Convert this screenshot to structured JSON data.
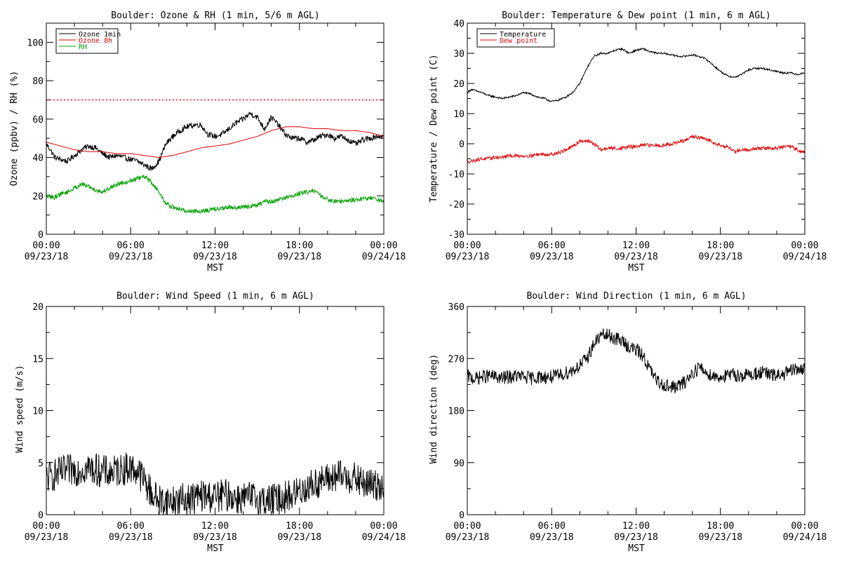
{
  "chart_data": [
    {
      "id": "ozone_rh",
      "type": "line",
      "title": "Boulder: Ozone & RH (1 min, 5/6 m AGL)",
      "xlabel": "MST",
      "ylabel": "Ozone (ppbv) / RH (%)",
      "xlim": [
        0,
        24
      ],
      "ylim": [
        0,
        110
      ],
      "yticks": [
        0,
        20,
        40,
        60,
        80,
        100
      ],
      "x_tick_labels": [
        [
          "00:00",
          "09/23/18"
        ],
        [
          "06:00",
          "09/23/18"
        ],
        [
          "12:00",
          "09/23/18"
        ],
        [
          "18:00",
          "09/23/18"
        ],
        [
          "00:00",
          "09/24/18"
        ]
      ],
      "legend": {
        "placement": "top-left",
        "entries": [
          {
            "name": "Ozone 1min",
            "color": "#000000"
          },
          {
            "name": "Ozone 8h",
            "color": "#e00000"
          },
          {
            "name": "RH",
            "color": "#00a000"
          }
        ]
      },
      "reference_line": {
        "y": 70,
        "color": "#e00000",
        "style": "dotted"
      },
      "series": [
        {
          "name": "Ozone 1min",
          "color": "#000000",
          "noise": 1.5,
          "x": [
            0,
            0.3,
            0.6,
            1,
            1.5,
            2,
            2.5,
            3,
            3.5,
            4,
            4.5,
            5,
            5.5,
            6,
            6.5,
            7,
            7.5,
            8,
            8.5,
            9,
            9.5,
            10,
            10.5,
            11,
            11.5,
            12,
            12.5,
            13,
            13.5,
            14,
            14.5,
            15,
            15.5,
            16,
            16.5,
            17,
            17.5,
            18,
            18.5,
            19,
            19.5,
            20,
            20.5,
            21,
            21.5,
            22,
            22.5,
            23,
            23.5,
            24
          ],
          "y": [
            47,
            44,
            40,
            39,
            38,
            41,
            44,
            46,
            45,
            42,
            40,
            41,
            40,
            39,
            38,
            36,
            34,
            38,
            47,
            51,
            54,
            56,
            57,
            57,
            52,
            51,
            52,
            55,
            58,
            60,
            63,
            61,
            55,
            61,
            57,
            52,
            50,
            50,
            48,
            49,
            51,
            52,
            50,
            51,
            49,
            47,
            49,
            50,
            51,
            51
          ]
        },
        {
          "name": "Ozone 8h",
          "color": "#e00000",
          "noise": 0,
          "x": [
            0,
            1,
            2,
            3,
            4,
            5,
            6,
            7,
            8,
            9,
            10,
            11,
            12,
            13,
            14,
            15,
            16,
            17,
            18,
            19,
            20,
            21,
            22,
            23,
            24
          ],
          "y": [
            48,
            46,
            44,
            43,
            43,
            42,
            42,
            41,
            40,
            41,
            43,
            45,
            46,
            47,
            49,
            51,
            54,
            56,
            56,
            55,
            55,
            54,
            54,
            53,
            51
          ]
        },
        {
          "name": "RH",
          "color": "#00a000",
          "noise": 1.2,
          "x": [
            0,
            0.5,
            1,
            1.5,
            2,
            2.5,
            3,
            3.5,
            4,
            4.5,
            5,
            5.5,
            6,
            6.5,
            7,
            7.5,
            8,
            8.5,
            9,
            9.5,
            10,
            11,
            12,
            13,
            14,
            15,
            15.5,
            16,
            16.5,
            17,
            17.5,
            18,
            18.5,
            19,
            19.5,
            20,
            21,
            22,
            23,
            24
          ],
          "y": [
            20,
            19,
            21,
            22,
            24,
            26,
            25,
            23,
            22,
            24,
            26,
            27,
            28,
            29,
            30,
            27,
            22,
            16,
            14,
            13,
            12,
            12,
            13,
            14,
            14,
            15,
            17,
            17,
            18,
            19,
            20,
            21,
            22,
            23,
            20,
            18,
            17,
            18,
            19,
            17
          ]
        }
      ]
    },
    {
      "id": "temp_dew",
      "type": "line",
      "title": "Boulder: Temperature & Dew point (1 min, 6 m AGL)",
      "xlabel": "MST",
      "ylabel": "Temperature / Dew point (C)",
      "xlim": [
        0,
        24
      ],
      "ylim": [
        -30,
        40
      ],
      "yticks": [
        -30,
        -20,
        -10,
        0,
        10,
        20,
        30,
        40
      ],
      "x_tick_labels": [
        [
          "00:00",
          "09/23/18"
        ],
        [
          "06:00",
          "09/23/18"
        ],
        [
          "12:00",
          "09/23/18"
        ],
        [
          "18:00",
          "09/23/18"
        ],
        [
          "00:00",
          "09/24/18"
        ]
      ],
      "legend": {
        "placement": "top-left",
        "entries": [
          {
            "name": "Temperature",
            "color": "#000000"
          },
          {
            "name": "Dew point",
            "color": "#e00000"
          }
        ]
      },
      "series": [
        {
          "name": "Temperature",
          "color": "#000000",
          "noise": 0.3,
          "x": [
            0,
            0.3,
            1,
            1.5,
            2,
            2.5,
            3,
            3.5,
            4,
            4.5,
            5,
            5.5,
            6,
            6.5,
            7,
            7.5,
            8,
            8.5,
            9,
            9.5,
            10,
            10.5,
            11,
            11.5,
            12,
            12.5,
            13,
            13.5,
            14,
            14.5,
            15,
            15.5,
            16,
            16.5,
            17,
            17.5,
            18,
            18.5,
            19,
            19.5,
            20,
            20.5,
            21,
            21.5,
            22,
            22.5,
            23,
            23.5,
            24
          ],
          "y": [
            17,
            18,
            17,
            16,
            15.5,
            15,
            15.5,
            16,
            17,
            16.5,
            15.5,
            15,
            14,
            14.5,
            15.5,
            17,
            20,
            25,
            29,
            30,
            30,
            31,
            31.5,
            30,
            31,
            31.5,
            30.5,
            30,
            30,
            29.5,
            29,
            29,
            29.5,
            29,
            28,
            26,
            24,
            22.5,
            22,
            23,
            24.5,
            25,
            25,
            24.5,
            24,
            23.5,
            23.5,
            23,
            23.5
          ]
        },
        {
          "name": "Dew point",
          "color": "#e00000",
          "noise": 0.6,
          "x": [
            0,
            0.5,
            1,
            1.5,
            2,
            2.5,
            3,
            3.5,
            4,
            4.5,
            5,
            5.5,
            6,
            6.5,
            7,
            7.5,
            8,
            8.5,
            9,
            9.5,
            10,
            10.5,
            11,
            11.5,
            12,
            12.5,
            13,
            13.5,
            14,
            14.5,
            15,
            15.5,
            16,
            16.5,
            17,
            17.5,
            18,
            18.5,
            19,
            19.5,
            20,
            20.5,
            21,
            21.5,
            22,
            22.5,
            23,
            23.5,
            24
          ],
          "y": [
            -6,
            -5.5,
            -5,
            -5,
            -4.5,
            -4.5,
            -4,
            -4,
            -4,
            -4,
            -3.5,
            -3.5,
            -3.5,
            -3,
            -2,
            -1,
            1,
            1,
            0,
            -2,
            -1.5,
            -1.5,
            -1.5,
            -1,
            -1,
            -0.5,
            -0.5,
            -0.5,
            -0.5,
            0,
            0.5,
            1,
            2.5,
            2,
            1.5,
            0.5,
            -0.5,
            -1,
            -2.5,
            -2,
            -2,
            -1.5,
            -1.5,
            -1.5,
            -1.5,
            -1,
            -1,
            -2,
            -3
          ]
        }
      ]
    },
    {
      "id": "wind_speed",
      "type": "line",
      "title": "Boulder: Wind Speed (1 min, 6 m AGL)",
      "xlabel": "MST",
      "ylabel": "Wind speed (m/s)",
      "xlim": [
        0,
        24
      ],
      "ylim": [
        0,
        20
      ],
      "yticks": [
        0,
        5,
        10,
        15,
        20
      ],
      "x_tick_labels": [
        [
          "00:00",
          "09/23/18"
        ],
        [
          "06:00",
          "09/23/18"
        ],
        [
          "12:00",
          "09/23/18"
        ],
        [
          "18:00",
          "09/23/18"
        ],
        [
          "00:00",
          "09/24/18"
        ]
      ],
      "series": [
        {
          "name": "",
          "color": "#000000",
          "noise": 1.6,
          "x": [
            0,
            0.5,
            1,
            1.5,
            2,
            2.5,
            3,
            3.5,
            4,
            4.5,
            5,
            5.5,
            6,
            6.5,
            7,
            7.5,
            8,
            8.5,
            9,
            9.5,
            10,
            10.5,
            11,
            11.5,
            12,
            12.5,
            13,
            13.5,
            14,
            14.5,
            15,
            15.5,
            16,
            16.5,
            17,
            17.5,
            18,
            18.5,
            19,
            19.5,
            20,
            20.5,
            21,
            21.5,
            22,
            22.5,
            23,
            23.5,
            24
          ],
          "y": [
            3.5,
            3.8,
            4,
            4.2,
            4.3,
            4.4,
            4.5,
            4.3,
            4.2,
            4,
            4.2,
            4.4,
            4.5,
            4.2,
            3.2,
            2,
            1.4,
            1.3,
            1.3,
            1.4,
            1.5,
            1.6,
            1.8,
            1.8,
            1.7,
            1.8,
            1.9,
            1.6,
            1.6,
            1.6,
            1.6,
            1.4,
            1.4,
            1.5,
            1.7,
            1.9,
            2.3,
            2.6,
            2.9,
            3.2,
            3.4,
            3.6,
            3.7,
            3.6,
            3.4,
            3,
            2.9,
            2.8,
            3
          ]
        }
      ]
    },
    {
      "id": "wind_dir",
      "type": "line",
      "title": "Boulder: Wind Direction (1 min, 6 m AGL)",
      "xlabel": "MST",
      "ylabel": "Wind direction (deg)",
      "xlim": [
        0,
        24
      ],
      "ylim": [
        0,
        360
      ],
      "yticks": [
        0,
        90,
        180,
        270,
        360
      ],
      "x_tick_labels": [
        [
          "00:00",
          "09/23/18"
        ],
        [
          "06:00",
          "09/23/18"
        ],
        [
          "12:00",
          "09/23/18"
        ],
        [
          "18:00",
          "09/23/18"
        ],
        [
          "00:00",
          "09/24/18"
        ]
      ],
      "series": [
        {
          "name": "",
          "color": "#000000",
          "noise": 12,
          "x": [
            0,
            0.5,
            1,
            1.5,
            2,
            2.5,
            3,
            3.5,
            4,
            4.5,
            5,
            5.5,
            6,
            6.5,
            7,
            7.5,
            8,
            8.5,
            9,
            9.5,
            10,
            10.5,
            11,
            11.5,
            12,
            12.5,
            13,
            13.5,
            14,
            14.5,
            15,
            15.5,
            16,
            16.5,
            17,
            17.5,
            18,
            18.5,
            19,
            19.5,
            20,
            20.5,
            21,
            21.5,
            22,
            22.5,
            23,
            23.5,
            24
          ],
          "y": [
            240,
            235,
            238,
            240,
            238,
            236,
            238,
            240,
            238,
            236,
            238,
            238,
            238,
            240,
            245,
            250,
            258,
            270,
            295,
            310,
            310,
            305,
            300,
            290,
            285,
            275,
            250,
            230,
            225,
            220,
            222,
            230,
            245,
            255,
            245,
            240,
            238,
            240,
            242,
            240,
            242,
            244,
            246,
            242,
            240,
            243,
            248,
            252,
            250
          ]
        }
      ]
    }
  ]
}
